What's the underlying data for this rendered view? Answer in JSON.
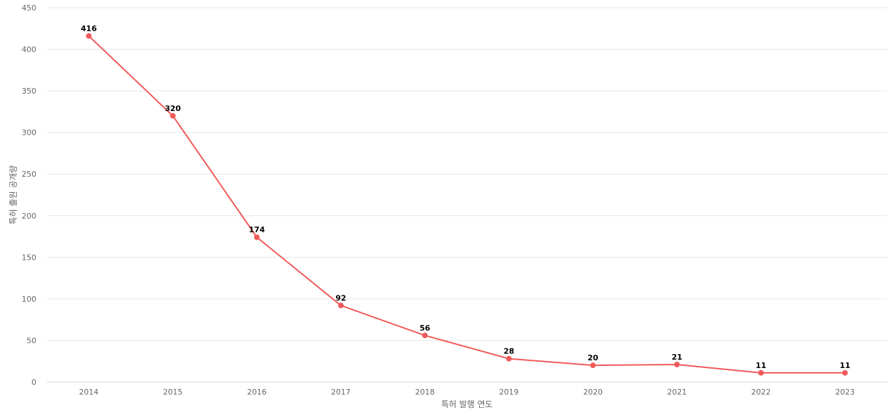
{
  "chart_data": {
    "type": "line",
    "title": "",
    "xlabel": "특허 발행 연도",
    "ylabel": "특허 출원 공개량",
    "categories": [
      "2014",
      "2015",
      "2016",
      "2017",
      "2018",
      "2019",
      "2020",
      "2021",
      "2022",
      "2023"
    ],
    "series": [
      {
        "values": [
          416,
          320,
          174,
          92,
          56,
          28,
          20,
          21,
          11,
          11
        ]
      }
    ],
    "ylim": [
      0,
      450
    ],
    "yticks": [
      0,
      50,
      100,
      150,
      200,
      250,
      300,
      350,
      400,
      450
    ],
    "grid": true,
    "legend": "none",
    "data_labels": true,
    "colors": {
      "line": "#f05a5a",
      "grid": "#e6e6e6",
      "tick_text": "#666666",
      "label_text": "#000000"
    }
  }
}
